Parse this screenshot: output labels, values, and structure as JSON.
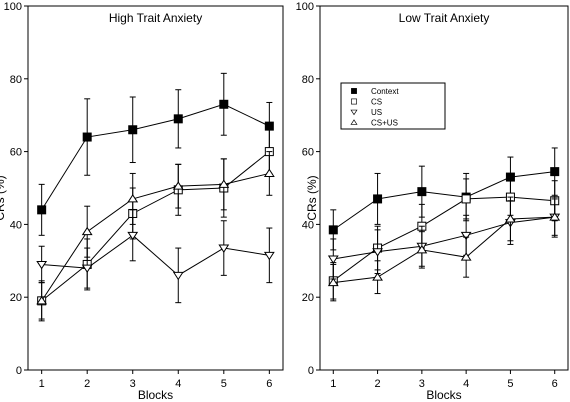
{
  "chart_data": [
    {
      "type": "line",
      "title": "High Trait Anxiety",
      "xlabel": "Blocks",
      "ylabel": "CRs (%)",
      "x": [
        1,
        2,
        3,
        4,
        5,
        6
      ],
      "xlim": [
        0.7,
        6.3
      ],
      "ylim": [
        0,
        100
      ],
      "yticks": [
        0,
        20,
        40,
        60,
        80,
        100
      ],
      "grid": false,
      "series": [
        {
          "name": "Context",
          "marker": "filled-square",
          "values": [
            44,
            64,
            66,
            69,
            73,
            67
          ],
          "errors": [
            7,
            10.5,
            9,
            8,
            8.5,
            6.5
          ]
        },
        {
          "name": "CS",
          "marker": "open-square",
          "values": [
            19,
            29,
            43,
            49.5,
            50,
            60
          ],
          "errors": [
            5,
            7,
            7,
            7,
            8,
            6
          ]
        },
        {
          "name": "US",
          "marker": "triangle-down",
          "values": [
            29,
            28,
            37,
            26,
            33.5,
            31.5
          ],
          "errors": [
            5,
            5.5,
            7,
            7.5,
            7.5,
            7.5
          ]
        },
        {
          "name": "CS+US",
          "marker": "triangle-up",
          "values": [
            19,
            38,
            47,
            50.5,
            51,
            54
          ],
          "errors": [
            5.5,
            7,
            7,
            6,
            7,
            6
          ]
        }
      ]
    },
    {
      "type": "line",
      "title": "Low Trait Anxiety",
      "xlabel": "Blocks",
      "ylabel": "CRs (%)",
      "x": [
        1,
        2,
        3,
        4,
        5,
        6
      ],
      "xlim": [
        0.7,
        6.3
      ],
      "ylim": [
        0,
        100
      ],
      "yticks": [
        0,
        20,
        40,
        60,
        80,
        100
      ],
      "grid": false,
      "legend_position": "upper-left",
      "series": [
        {
          "name": "Context",
          "marker": "filled-square",
          "values": [
            38.5,
            47,
            49,
            47.5,
            53,
            54.5
          ],
          "errors": [
            5.5,
            7,
            7,
            6.5,
            5.5,
            6.5
          ]
        },
        {
          "name": "CS",
          "marker": "open-square",
          "values": [
            24.5,
            33.5,
            39.5,
            47,
            47.5,
            46.5
          ],
          "errors": [
            5,
            6,
            6,
            5.5,
            5,
            5.5
          ]
        },
        {
          "name": "US",
          "marker": "triangle-down",
          "values": [
            30.5,
            32.5,
            34,
            37,
            40.5,
            42
          ],
          "errors": [
            5.5,
            6,
            5.5,
            5.5,
            6,
            5.5
          ]
        },
        {
          "name": "CS+US",
          "marker": "triangle-up",
          "values": [
            24,
            25.5,
            33,
            31,
            41.5,
            42
          ],
          "errors": [
            5,
            4.5,
            5,
            5.5,
            6,
            5
          ]
        }
      ]
    }
  ]
}
